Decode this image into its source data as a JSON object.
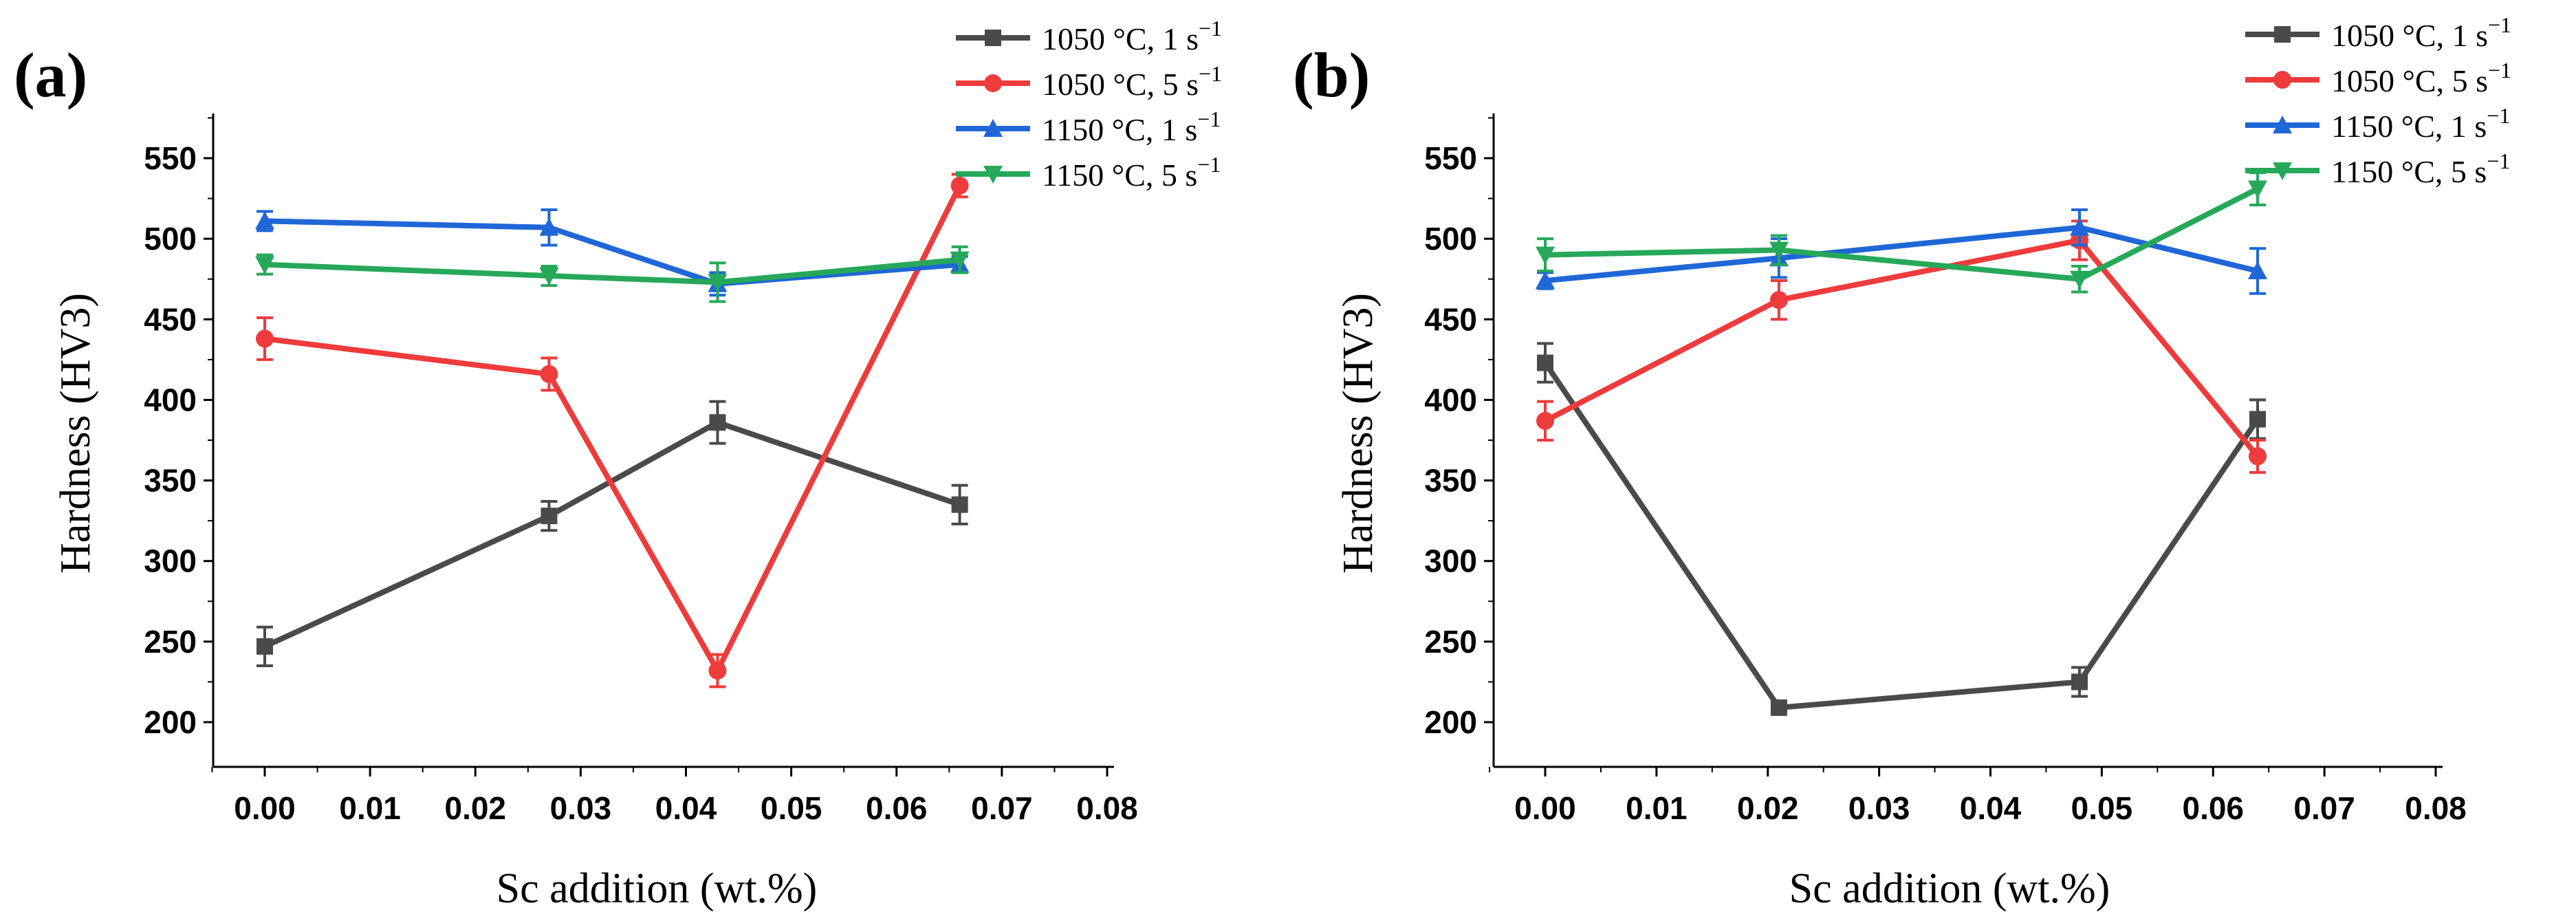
{
  "chart_data": [
    {
      "type": "line",
      "panel_label": "(a)",
      "xlabel": "Sc addition (wt.%)",
      "ylabel": "Hardness (HV3)",
      "xlim": [
        -0.004,
        0.08
      ],
      "ylim": [
        180,
        575
      ],
      "xticks": [
        0.0,
        0.01,
        0.02,
        0.03,
        0.04,
        0.05,
        0.06,
        0.07,
        0.08
      ],
      "xtick_labels": [
        "0.00",
        "0.01",
        "0.02",
        "0.03",
        "0.04",
        "0.05",
        "0.06",
        "0.07",
        "0.08"
      ],
      "yticks": [
        200,
        250,
        300,
        350,
        400,
        450,
        500,
        550
      ],
      "ytick_labels": [
        "200",
        "250",
        "300",
        "350",
        "400",
        "450",
        "500",
        "550"
      ],
      "x": [
        0.0,
        0.027,
        0.043,
        0.066
      ],
      "legend_position": "top-right",
      "series": [
        {
          "name": "1050 °C, 1 s",
          "sup": "−1",
          "color": "#4a4a4a",
          "marker": "square",
          "values": [
            247,
            328,
            386,
            335
          ],
          "errors": [
            12,
            9,
            13,
            12
          ]
        },
        {
          "name": "1050 °C, 5 s",
          "sup": "−1",
          "color": "#ee3b3b",
          "marker": "circle",
          "values": [
            438,
            416,
            232,
            533
          ],
          "errors": [
            13,
            10,
            10,
            7
          ]
        },
        {
          "name": "1150 °C, 1 s",
          "sup": "−1",
          "color": "#1f67d6",
          "marker": "triangle-up",
          "values": [
            511,
            507,
            472,
            484
          ],
          "errors": [
            6,
            11,
            7,
            5
          ]
        },
        {
          "name": "1150 °C, 5 s",
          "sup": "−1",
          "color": "#26a85a",
          "marker": "triangle-down",
          "values": [
            484,
            477,
            473,
            487
          ],
          "errors": [
            6,
            6,
            12,
            8
          ]
        }
      ]
    },
    {
      "type": "line",
      "panel_label": "(b)",
      "xlabel": "Sc addition (wt.%)",
      "ylabel": "Hardness (HV3)",
      "xlim": [
        -0.004,
        0.08
      ],
      "ylim": [
        180,
        575
      ],
      "xticks": [
        0.0,
        0.01,
        0.02,
        0.03,
        0.04,
        0.05,
        0.06,
        0.07,
        0.08
      ],
      "xtick_labels": [
        "0.00",
        "0.01",
        "0.02",
        "0.03",
        "0.04",
        "0.05",
        "0.06",
        "0.07",
        "0.08"
      ],
      "yticks": [
        200,
        250,
        300,
        350,
        400,
        450,
        500,
        550
      ],
      "ytick_labels": [
        "200",
        "250",
        "300",
        "350",
        "400",
        "450",
        "500",
        "550"
      ],
      "x": [
        0.0,
        0.021,
        0.048,
        0.064
      ],
      "legend_position": "top-right",
      "series": [
        {
          "name": "1050 °C, 1 s",
          "sup": "−1",
          "color": "#4a4a4a",
          "marker": "square",
          "values": [
            423,
            209,
            225,
            388
          ],
          "errors": [
            12,
            4,
            9,
            12
          ]
        },
        {
          "name": "1050 °C, 5 s",
          "sup": "−1",
          "color": "#ee3b3b",
          "marker": "circle",
          "values": [
            387,
            462,
            499,
            365
          ],
          "errors": [
            12,
            12,
            12,
            10
          ]
        },
        {
          "name": "1150 °C, 1 s",
          "sup": "−1",
          "color": "#1f67d6",
          "marker": "triangle-up",
          "values": [
            474,
            488,
            507,
            480
          ],
          "errors": [
            5,
            12,
            11,
            14
          ]
        },
        {
          "name": "1150 °C, 5 s",
          "sup": "−1",
          "color": "#26a85a",
          "marker": "triangle-down",
          "values": [
            490,
            493,
            475,
            531
          ],
          "errors": [
            10,
            9,
            8,
            10
          ]
        }
      ]
    }
  ]
}
